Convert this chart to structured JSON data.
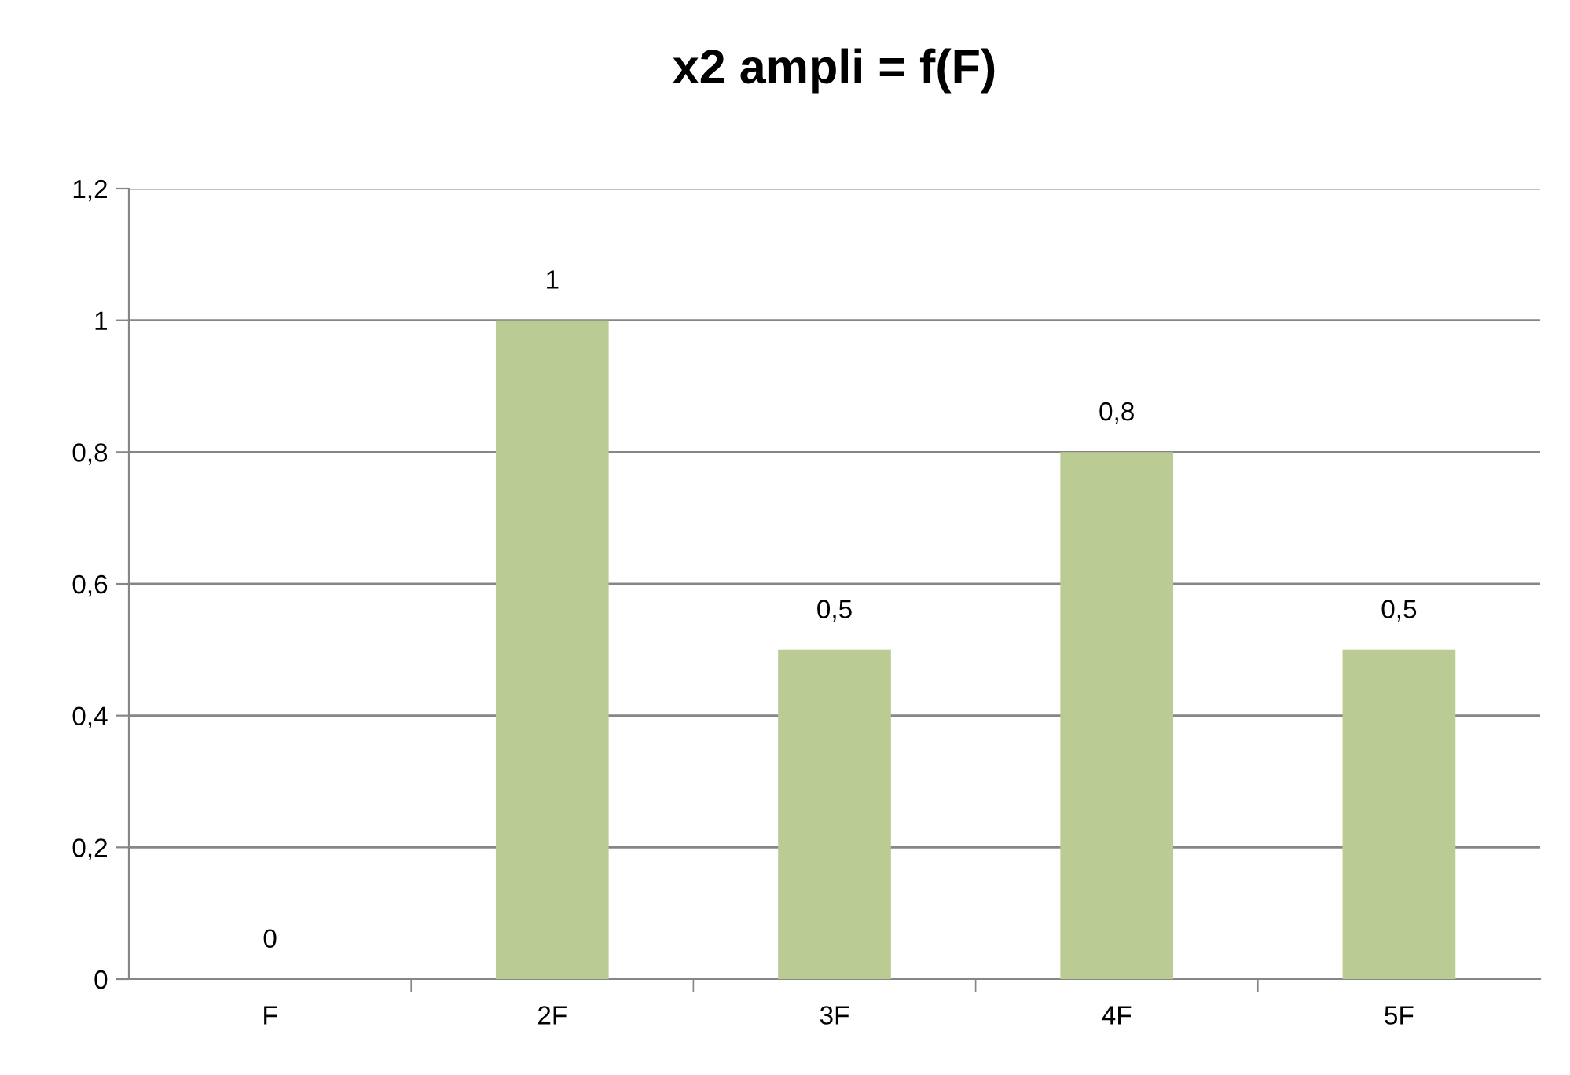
{
  "chart_data": {
    "type": "bar",
    "title": "x2 ampli = f(F)",
    "categories": [
      "F",
      "2F",
      "3F",
      "4F",
      "5F"
    ],
    "values": [
      0,
      1,
      0.5,
      0.8,
      0.5
    ],
    "value_labels": [
      "0",
      "1",
      "0,5",
      "0,8",
      "0,5"
    ],
    "color": "#bacc94",
    "ylim": [
      0,
      1.2
    ],
    "yticks": [
      0,
      {
        "value": 0.2,
        "label": "0,2"
      },
      {
        "value": 0.4,
        "label": "0,4"
      },
      {
        "value": 0.6,
        "label": "0,6"
      },
      {
        "value": 0.8,
        "label": "0,8"
      },
      1,
      {
        "value": 1.2,
        "label": "1,2"
      }
    ],
    "grid": "y",
    "legend": false
  }
}
